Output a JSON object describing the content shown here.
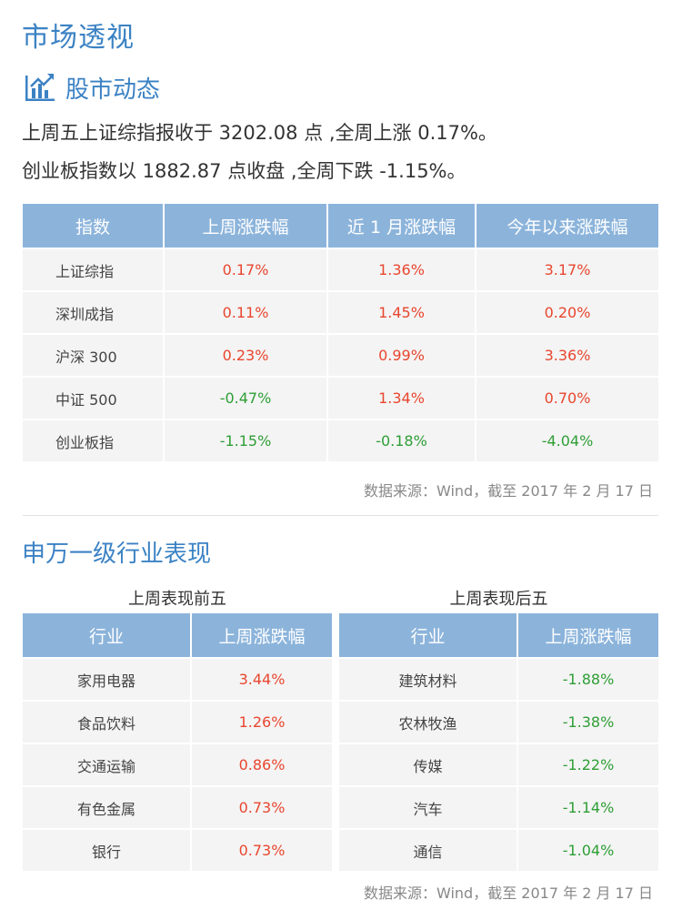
{
  "page_title": "市场透视",
  "section1": {
    "title": "股市动态",
    "icon": "bar-chart-trend-icon",
    "summary_line1": "上周五上证综指报收于 3202.08 点 ,全周上涨 0.17%。",
    "summary_line2": "创业板指数以 1882.87 点收盘 ,全周下跌 -1.15%。",
    "table": {
      "headers": [
        "指数",
        "上周涨跌幅",
        "近 1 月涨跌幅",
        "今年以来涨跌幅"
      ],
      "rows": [
        {
          "name": "上证综指",
          "week": "0.17%",
          "month": "1.36%",
          "ytd": "3.17%"
        },
        {
          "name": "深圳成指",
          "week": "0.11%",
          "month": "1.45%",
          "ytd": "0.20%"
        },
        {
          "name": "沪深 300",
          "week": "0.23%",
          "month": "0.99%",
          "ytd": "3.36%"
        },
        {
          "name": "中证 500",
          "week": "-0.47%",
          "month": "1.34%",
          "ytd": "0.70%"
        },
        {
          "name": "创业板指",
          "week": "-1.15%",
          "month": "-0.18%",
          "ytd": "-4.04%"
        }
      ]
    },
    "source": "数据来源：Wind，截至 2017 年 2 月 17 日"
  },
  "section2": {
    "title": "申万一级行业表现",
    "top5": {
      "title": "上周表现前五",
      "headers": [
        "行业",
        "上周涨跌幅"
      ],
      "rows": [
        {
          "name": "家用电器",
          "week": "3.44%"
        },
        {
          "name": "食品饮料",
          "week": "1.26%"
        },
        {
          "name": "交通运输",
          "week": "0.86%"
        },
        {
          "name": "有色金属",
          "week": "0.73%"
        },
        {
          "name": "银行",
          "week": "0.73%"
        }
      ]
    },
    "bottom5": {
      "title": "上周表现后五",
      "headers": [
        "行业",
        "上周涨跌幅"
      ],
      "rows": [
        {
          "name": "建筑材料",
          "week": "-1.88%"
        },
        {
          "name": "农林牧渔",
          "week": "-1.38%"
        },
        {
          "name": "传媒",
          "week": "-1.22%"
        },
        {
          "name": "汽车",
          "week": "-1.14%"
        },
        {
          "name": "通信",
          "week": "-1.04%"
        }
      ]
    },
    "source": "数据来源：Wind，截至 2017 年 2 月 17 日"
  },
  "colors": {
    "accent": "#3b82c4",
    "header_bg": "#8cb4db",
    "up": "#e8462f",
    "down": "#2e9e35"
  }
}
